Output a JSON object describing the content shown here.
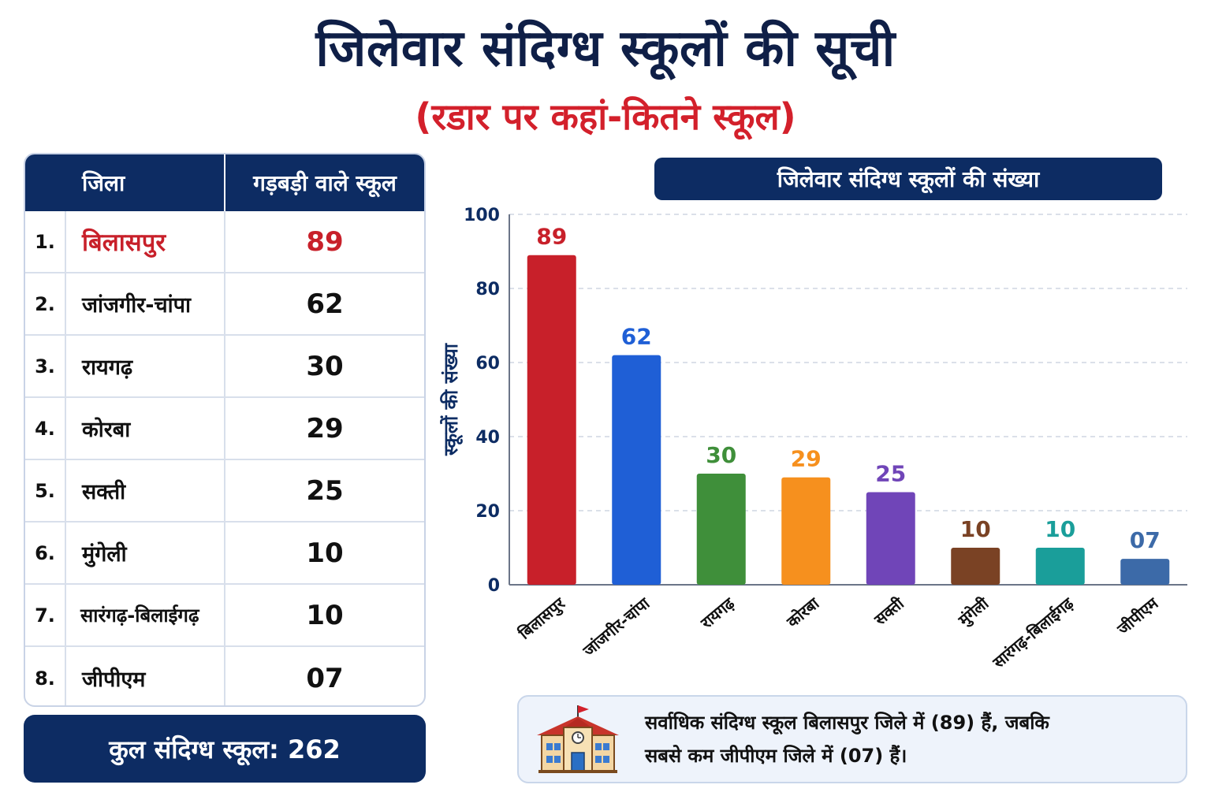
{
  "title": "जिलेवार संदिग्ध स्कूलों की सूची",
  "subtitle": "(रडार पर कहां-कितने स्कूल)",
  "table": {
    "headers": [
      "जिला",
      "गड़बड़ी वाले स्कूल"
    ],
    "rows": [
      {
        "rank": "1.",
        "district": "बिलासपुर",
        "count": "89"
      },
      {
        "rank": "2.",
        "district": "जांजगीर-चांपा",
        "count": "62"
      },
      {
        "rank": "3.",
        "district": "रायगढ़",
        "count": "30"
      },
      {
        "rank": "4.",
        "district": "कोरबा",
        "count": "29"
      },
      {
        "rank": "5.",
        "district": "सक्ती",
        "count": "25"
      },
      {
        "rank": "6.",
        "district": "मुंगेली",
        "count": "10"
      },
      {
        "rank": "7.",
        "district": "सारंगढ़-बिलाईगढ़",
        "count": "10"
      },
      {
        "rank": "8.",
        "district": "जीपीएम",
        "count": "07"
      }
    ],
    "total": "कुल संदिग्ध स्कूल: 262"
  },
  "chart_data": {
    "type": "bar",
    "title": "जिलेवार संदिग्ध स्कूलों की संख्या",
    "ylabel": "स्कूलों की संख्या",
    "xlabel": "",
    "categories": [
      "बिलासपुर",
      "जांजगीर-चांपा",
      "रायगढ़",
      "कोरबा",
      "सक्ती",
      "मुंगेली",
      "सारंगढ़-बिलाईगढ़",
      "जीपीएम"
    ],
    "values": [
      89,
      62,
      30,
      29,
      25,
      10,
      10,
      7
    ],
    "value_labels": [
      "89",
      "62",
      "30",
      "29",
      "25",
      "10",
      "10",
      "07"
    ],
    "colors": [
      "#c8202a",
      "#1f5fd6",
      "#3f8f3a",
      "#f6901e",
      "#7045b8",
      "#7a4224",
      "#1a9e9a",
      "#3c6aa8"
    ],
    "ylim": [
      0,
      100
    ],
    "yticks": [
      0,
      20,
      40,
      60,
      80,
      100
    ],
    "grid": true
  },
  "note": {
    "line1": "सर्वाधिक संदिग्ध स्कूल बिलासपुर जिले में (89) हैं, जबकि",
    "line2": "सबसे कम जीपीएम जिले में (07) हैं।",
    "icon": "school-building-icon"
  },
  "colors": {
    "navy": "#0d2c63",
    "red": "#d3202b"
  }
}
